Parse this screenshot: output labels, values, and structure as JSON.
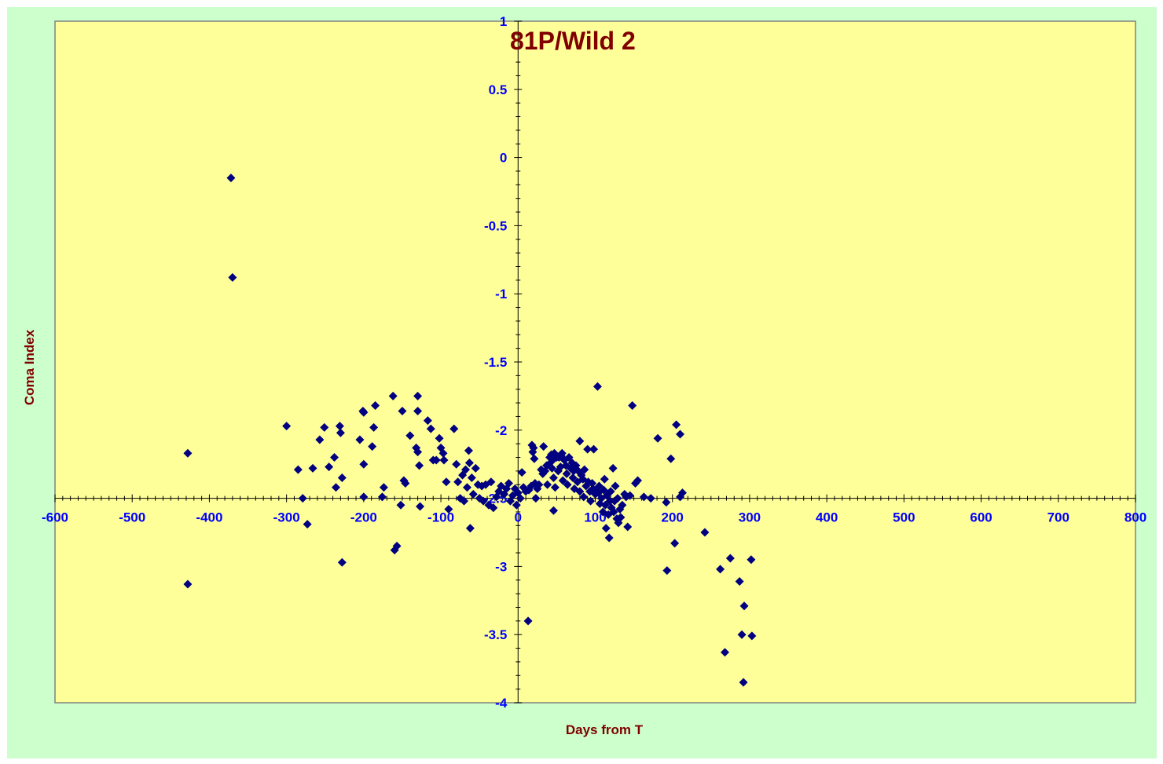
{
  "colors": {
    "chart_area_bg": "#ccffcc",
    "plot_bg": "#ffff99",
    "marker": "#000080",
    "tick_label": "#0000ff",
    "title": "#800000"
  },
  "chart_data": {
    "type": "scatter",
    "title": "81P/Wild 2",
    "xlabel": "Days from T",
    "ylabel": "Coma Index",
    "xlim": [
      -600,
      800
    ],
    "ylim": [
      -4,
      1
    ],
    "x_ticks": [
      -600,
      -500,
      -400,
      -300,
      -200,
      -100,
      0,
      100,
      200,
      300,
      400,
      500,
      600,
      700,
      800
    ],
    "x_tick_labels": [
      "-600",
      "-500",
      "-400",
      "-300",
      "-200",
      "-100",
      "0",
      "100",
      "200",
      "300",
      "400",
      "500",
      "600",
      "700",
      "800"
    ],
    "y_ticks": [
      1,
      0.5,
      0,
      -0.5,
      -1,
      -1.5,
      -2,
      -2.5,
      -3,
      -3.5,
      -4
    ],
    "y_tick_labels": [
      "1",
      "0.5",
      "0",
      "-0.5",
      "-1",
      "-1.5",
      "-2",
      "-2.5",
      "-3",
      "-3.5",
      "-4"
    ],
    "grid": false,
    "legend": "none",
    "marker": "diamond",
    "series": [
      {
        "points": [
          [
            -372,
            -0.15
          ],
          [
            -370,
            -0.88
          ],
          [
            -428,
            -2.17
          ],
          [
            -428,
            -3.13
          ],
          [
            -300,
            -1.97
          ],
          [
            -285,
            -2.29
          ],
          [
            -279,
            -2.5
          ],
          [
            -273,
            -2.69
          ],
          [
            -266,
            -2.28
          ],
          [
            -257,
            -2.07
          ],
          [
            -251,
            -1.98
          ],
          [
            -245,
            -2.27
          ],
          [
            -238,
            -2.2
          ],
          [
            -236,
            -2.42
          ],
          [
            -231,
            -1.97
          ],
          [
            -230,
            -2.02
          ],
          [
            -228,
            -2.35
          ],
          [
            -228,
            -2.97
          ],
          [
            -205,
            -2.07
          ],
          [
            -201,
            -1.86
          ],
          [
            -200,
            -1.87
          ],
          [
            -200,
            -2.25
          ],
          [
            -200,
            -2.49
          ],
          [
            -189,
            -2.12
          ],
          [
            -187,
            -1.98
          ],
          [
            -185,
            -1.82
          ],
          [
            -176,
            -2.49
          ],
          [
            -174,
            -2.42
          ],
          [
            -162,
            -1.75
          ],
          [
            -160,
            -2.88
          ],
          [
            -157,
            -2.85
          ],
          [
            -152,
            -2.55
          ],
          [
            -150,
            -1.86
          ],
          [
            -148,
            -2.37
          ],
          [
            -146,
            -2.39
          ],
          [
            -140,
            -2.04
          ],
          [
            -132,
            -2.13
          ],
          [
            -130,
            -2.16
          ],
          [
            -130,
            -1.75
          ],
          [
            -130,
            -1.86
          ],
          [
            -128,
            -2.26
          ],
          [
            -127,
            -2.56
          ],
          [
            -117,
            -1.93
          ],
          [
            -113,
            -1.99
          ],
          [
            -110,
            -2.22
          ],
          [
            -106,
            -2.22
          ],
          [
            -102,
            -2.06
          ],
          [
            -100,
            -2.13
          ],
          [
            -97,
            -2.17
          ],
          [
            -96,
            -2.22
          ],
          [
            -93,
            -2.38
          ],
          [
            -90,
            -2.58
          ],
          [
            -83,
            -1.99
          ],
          [
            -80,
            -2.25
          ],
          [
            -78,
            -2.38
          ],
          [
            -75,
            -2.5
          ],
          [
            -72,
            -2.33
          ],
          [
            -70,
            -2.52
          ],
          [
            -68,
            -2.29
          ],
          [
            -66,
            -2.42
          ],
          [
            -64,
            -2.15
          ],
          [
            -63,
            -2.24
          ],
          [
            -62,
            -2.72
          ],
          [
            -60,
            -2.35
          ],
          [
            -58,
            -2.47
          ],
          [
            -55,
            -2.28
          ],
          [
            -52,
            -2.4
          ],
          [
            -50,
            -2.5
          ],
          [
            -47,
            -2.41
          ],
          [
            -45,
            -2.52
          ],
          [
            -42,
            -2.4
          ],
          [
            -38,
            -2.55
          ],
          [
            -35,
            -2.38
          ],
          [
            -32,
            -2.57
          ],
          [
            -28,
            -2.49
          ],
          [
            -25,
            -2.45
          ],
          [
            -22,
            -2.41
          ],
          [
            -18,
            -2.47
          ],
          [
            -15,
            -2.43
          ],
          [
            -12,
            -2.39
          ],
          [
            -10,
            -2.52
          ],
          [
            -7,
            -2.48
          ],
          [
            -4,
            -2.43
          ],
          [
            -2,
            -2.55
          ],
          [
            0,
            -2.46
          ],
          [
            3,
            -2.5
          ],
          [
            5,
            -2.31
          ],
          [
            7,
            -2.42
          ],
          [
            10,
            -2.45
          ],
          [
            13,
            -3.4
          ],
          [
            14,
            -2.44
          ],
          [
            17,
            -2.41
          ],
          [
            18,
            -2.11
          ],
          [
            19,
            -2.16
          ],
          [
            20,
            -2.13
          ],
          [
            21,
            -2.21
          ],
          [
            22,
            -2.39
          ],
          [
            23,
            -2.5
          ],
          [
            25,
            -2.43
          ],
          [
            27,
            -2.4
          ],
          [
            30,
            -2.29
          ],
          [
            32,
            -2.32
          ],
          [
            33,
            -2.12
          ],
          [
            35,
            -2.3
          ],
          [
            37,
            -2.26
          ],
          [
            38,
            -2.4
          ],
          [
            40,
            -2.25
          ],
          [
            41,
            -2.2
          ],
          [
            43,
            -2.18
          ],
          [
            44,
            -2.28
          ],
          [
            45,
            -2.22
          ],
          [
            46,
            -2.35
          ],
          [
            46,
            -2.59
          ],
          [
            47,
            -2.17
          ],
          [
            48,
            -2.42
          ],
          [
            50,
            -2.2
          ],
          [
            52,
            -2.3
          ],
          [
            53,
            -2.2
          ],
          [
            55,
            -2.27
          ],
          [
            56,
            -2.19
          ],
          [
            57,
            -2.17
          ],
          [
            58,
            -2.37
          ],
          [
            60,
            -2.22
          ],
          [
            62,
            -2.26
          ],
          [
            63,
            -2.32
          ],
          [
            64,
            -2.4
          ],
          [
            66,
            -2.2
          ],
          [
            68,
            -2.28
          ],
          [
            70,
            -2.24
          ],
          [
            71,
            -2.35
          ],
          [
            72,
            -2.3
          ],
          [
            73,
            -2.43
          ],
          [
            75,
            -2.26
          ],
          [
            77,
            -2.38
          ],
          [
            78,
            -2.3
          ],
          [
            80,
            -2.08
          ],
          [
            80,
            -2.45
          ],
          [
            82,
            -2.33
          ],
          [
            84,
            -2.36
          ],
          [
            85,
            -2.49
          ],
          [
            86,
            -2.29
          ],
          [
            88,
            -2.41
          ],
          [
            90,
            -2.14
          ],
          [
            91,
            -2.38
          ],
          [
            93,
            -2.45
          ],
          [
            94,
            -2.52
          ],
          [
            96,
            -2.39
          ],
          [
            97,
            -2.43
          ],
          [
            98,
            -2.14
          ],
          [
            100,
            -2.47
          ],
          [
            101,
            -2.44
          ],
          [
            103,
            -1.68
          ],
          [
            104,
            -2.46
          ],
          [
            105,
            -2.41
          ],
          [
            106,
            -2.54
          ],
          [
            108,
            -2.5
          ],
          [
            110,
            -2.6
          ],
          [
            111,
            -2.44
          ],
          [
            112,
            -2.36
          ],
          [
            113,
            -2.55
          ],
          [
            114,
            -2.72
          ],
          [
            115,
            -2.48
          ],
          [
            117,
            -2.62
          ],
          [
            118,
            -2.79
          ],
          [
            119,
            -2.52
          ],
          [
            120,
            -2.45
          ],
          [
            121,
            -2.57
          ],
          [
            123,
            -2.28
          ],
          [
            124,
            -2.6
          ],
          [
            125,
            -2.52
          ],
          [
            126,
            -2.41
          ],
          [
            128,
            -2.65
          ],
          [
            129,
            -2.5
          ],
          [
            130,
            -2.68
          ],
          [
            132,
            -2.58
          ],
          [
            133,
            -2.64
          ],
          [
            135,
            -2.55
          ],
          [
            138,
            -2.47
          ],
          [
            140,
            -2.49
          ],
          [
            142,
            -2.71
          ],
          [
            145,
            -2.48
          ],
          [
            148,
            -1.82
          ],
          [
            152,
            -2.39
          ],
          [
            155,
            -2.37
          ],
          [
            163,
            -2.49
          ],
          [
            172,
            -2.5
          ],
          [
            181,
            -2.06
          ],
          [
            192,
            -2.53
          ],
          [
            193,
            -3.03
          ],
          [
            198,
            -2.21
          ],
          [
            203,
            -2.83
          ],
          [
            205,
            -1.96
          ],
          [
            210,
            -2.03
          ],
          [
            210,
            -2.49
          ],
          [
            213,
            -2.46
          ],
          [
            242,
            -2.75
          ],
          [
            262,
            -3.02
          ],
          [
            268,
            -3.63
          ],
          [
            275,
            -2.94
          ],
          [
            287,
            -3.11
          ],
          [
            290,
            -3.5
          ],
          [
            292,
            -3.85
          ],
          [
            293,
            -3.29
          ],
          [
            302,
            -2.95
          ],
          [
            303,
            -3.51
          ]
        ]
      }
    ]
  }
}
